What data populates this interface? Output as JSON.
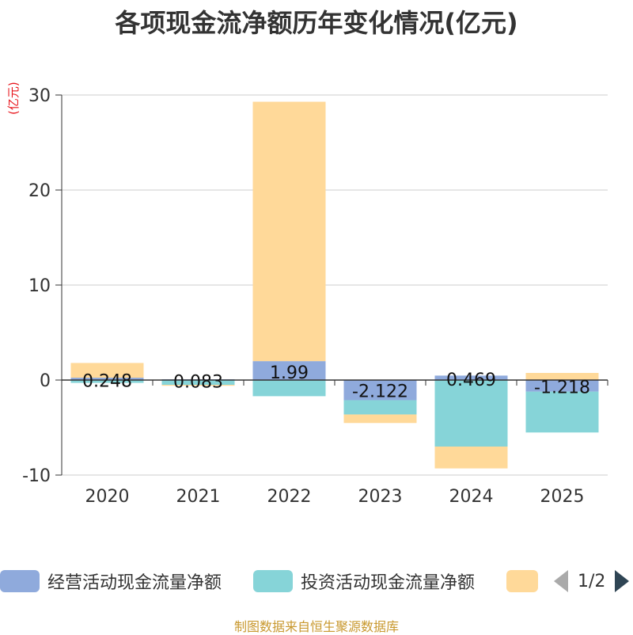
{
  "title": "各项现金流净额历年变化情况(亿元)",
  "unit_label": "(亿元)",
  "source": "制图数据来自恒生聚源数据库",
  "legend": {
    "items": [
      {
        "label": "经营活动现金流量净额",
        "color": "#8faadc"
      },
      {
        "label": "投资活动现金流量净额",
        "color": "#86d4d8"
      },
      {
        "label": "",
        "color": "#ffd999"
      }
    ],
    "page": "1/2"
  },
  "chart_data": {
    "type": "bar",
    "stacked": true,
    "title": "各项现金流净额历年变化情况(亿元)",
    "ylabel": "(亿元)",
    "ylim": [
      -10,
      30
    ],
    "yticks": [
      -10,
      0,
      10,
      20,
      30
    ],
    "categories": [
      "2020",
      "2021",
      "2022",
      "2023",
      "2024",
      "2025"
    ],
    "series": [
      {
        "name": "经营活动现金流量净额",
        "color": "#8faadc",
        "values": [
          0.248,
          0.083,
          1.99,
          -2.122,
          0.469,
          -1.218
        ],
        "labels": [
          "0.248",
          "0.083",
          "1.99",
          "-2.122",
          "0.469",
          "-1.218"
        ]
      },
      {
        "name": "投资活动现金流量净额",
        "color": "#86d4d8",
        "values": [
          -0.3,
          -0.5,
          -1.7,
          -1.5,
          -7.0,
          -4.3
        ]
      },
      {
        "name": "",
        "color": "#ffd999",
        "values": [
          1.55,
          -0.1,
          27.3,
          -0.9,
          -2.3,
          0.75
        ]
      }
    ]
  }
}
